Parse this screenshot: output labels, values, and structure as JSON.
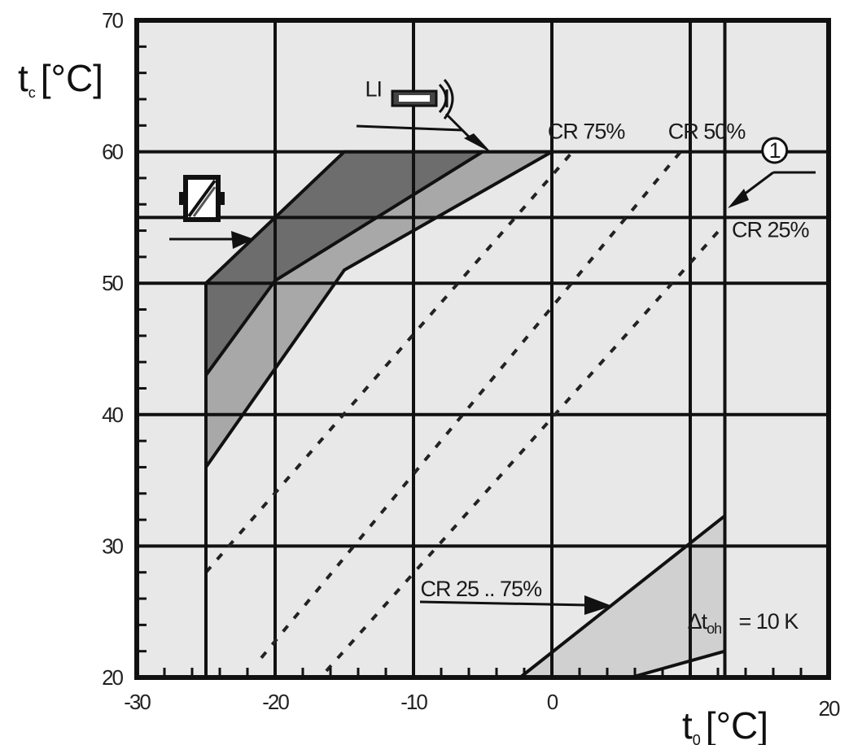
{
  "chart_data": {
    "type": "area",
    "title": "",
    "xlabel": "t",
    "xlabel_sub": "0",
    "xlabel_unit": "[°C]",
    "ylabel": "t",
    "ylabel_sub": "c",
    "ylabel_unit": "[°C]",
    "xlim": [
      -30,
      20
    ],
    "ylim": [
      20,
      70
    ],
    "x_major_ticks": [
      -30,
      -20,
      -10,
      0,
      10,
      20
    ],
    "x_tick_labels": [
      "-30",
      "-20",
      "-10",
      "0",
      "",
      "20"
    ],
    "y_major_ticks": [
      20,
      30,
      40,
      50,
      60,
      70
    ],
    "y_tick_labels": [
      "20",
      "30",
      "40",
      "50",
      "60",
      "70"
    ],
    "x_minor_step": 2,
    "y_minor_step": 2,
    "grid": true,
    "vertical_markers": [
      10,
      12.5
    ],
    "horizontal_markers": [
      55
    ],
    "regions": [
      {
        "name": "liquid-injection-region",
        "color": "#6d6d6d",
        "points": [
          [
            -25,
            50
          ],
          [
            -15,
            60
          ],
          [
            -5,
            60
          ],
          [
            -20,
            50.2
          ],
          [
            -25,
            43
          ]
        ]
      },
      {
        "name": "cr-limited-region",
        "color": "#a8a8a8",
        "points": [
          [
            -25,
            43
          ],
          [
            -20,
            50.2
          ],
          [
            -5,
            60
          ],
          [
            0,
            60
          ],
          [
            -15,
            51
          ],
          [
            -25,
            36
          ]
        ]
      },
      {
        "name": "cr-25-75-region",
        "color": "#d0d0d0",
        "points": [
          [
            -2.3,
            20
          ],
          [
            12.5,
            32.3
          ],
          [
            12.5,
            22
          ],
          [
            5.7,
            20
          ]
        ]
      }
    ],
    "boundary_lines": [
      {
        "name": "application-limit",
        "points": [
          [
            -25,
            20
          ],
          [
            -25,
            50
          ],
          [
            -15,
            60
          ],
          [
            0,
            60
          ]
        ]
      },
      {
        "name": "cr-75-limit",
        "points": [
          [
            -25,
            43
          ],
          [
            -20,
            50.2
          ],
          [
            -5,
            60
          ]
        ]
      },
      {
        "name": "cr-50-limit",
        "points": [
          [
            -25,
            36
          ],
          [
            -15,
            51
          ],
          [
            0,
            60
          ]
        ]
      },
      {
        "name": "cr-25-limit",
        "points": [
          [
            12.5,
            20
          ],
          [
            12.5,
            55
          ]
        ]
      },
      {
        "name": "cr-25-75-lower-limit",
        "points": [
          [
            -2.3,
            20
          ],
          [
            12.5,
            32.3
          ]
        ]
      },
      {
        "name": "delta-t-limit",
        "points": [
          [
            5.7,
            20
          ],
          [
            12.5,
            22
          ]
        ]
      }
    ],
    "dashed_lines": [
      {
        "name": "dashed-line-1",
        "points": [
          [
            -25,
            28
          ],
          [
            1.5,
            60
          ]
        ]
      },
      {
        "name": "dashed-line-2",
        "points": [
          [
            -21,
            21.5
          ],
          [
            9.3,
            60
          ]
        ]
      },
      {
        "name": "dashed-line-3",
        "points": [
          [
            -16.3,
            20.5
          ],
          [
            12.5,
            54.5
          ]
        ]
      }
    ],
    "annotations": [
      {
        "text": "LI",
        "x": -13.5,
        "y": 64.2
      },
      {
        "text": "CR 75%",
        "x": -0.3,
        "y": 61
      },
      {
        "text": "CR 50%",
        "x": 8.4,
        "y": 61
      },
      {
        "text": "CR 25%",
        "x": 13,
        "y": 53.5
      },
      {
        "text": "CR 25 .. 75%",
        "x": -9.5,
        "y": 26.2
      },
      {
        "text": "= 10 K",
        "x": 13.5,
        "y": 23.7
      }
    ],
    "delta_label": {
      "symbol": "Δt",
      "sub": "oh",
      "x": 9.8,
      "y": 23.7
    },
    "circle_marker": {
      "text": "1",
      "x": 16.1,
      "y": 60.1
    }
  }
}
